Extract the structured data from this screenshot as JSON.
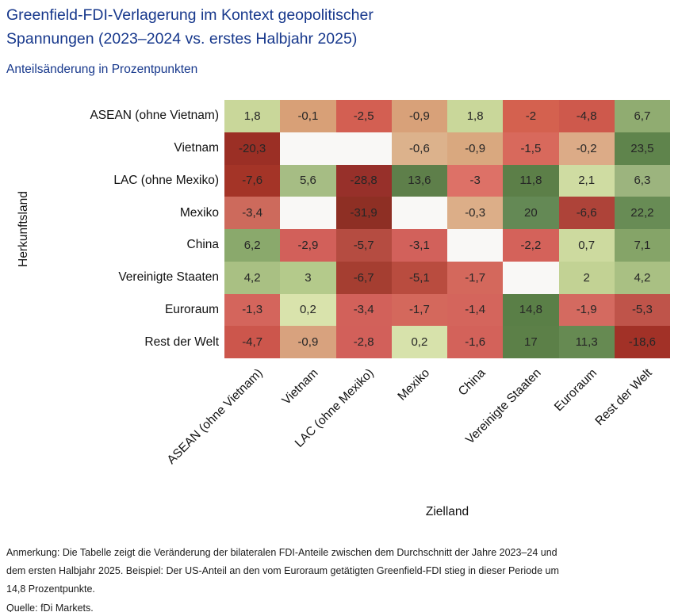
{
  "header": {
    "title_line1": "Greenfield-FDI-Verlagerung im Kontext geopolitischer",
    "title_line2": "Spannungen (2023–2024 vs. erstes Halbjahr 2025)",
    "subtitle": "Anteilsänderung in Prozentpunkten"
  },
  "chart_data": {
    "type": "heatmap",
    "title": "Greenfield-FDI-Verlagerung im Kontext geopolitischer Spannungen (2023–2024 vs. erstes Halbjahr 2025)",
    "subtitle": "Anteilsänderung in Prozentpunkten",
    "xlabel": "Zielland",
    "ylabel": "Herkunftsland",
    "columns": [
      "ASEAN (ohne Vietnam)",
      "Vietnam",
      "LAC (ohne Mexiko)",
      "Mexiko",
      "China",
      "Vereinigte Staaten",
      "Euroraum",
      "Rest der Welt"
    ],
    "rows": [
      "ASEAN (ohne Vietnam)",
      "Vietnam",
      "LAC (ohne Mexiko)",
      "Mexiko",
      "China",
      "Vereinigte Staaten",
      "Euroraum",
      "Rest der Welt"
    ],
    "values": [
      [
        1.8,
        -0.1,
        -2.5,
        -0.9,
        1.8,
        -2,
        -4.8,
        6.7
      ],
      [
        -20.3,
        null,
        null,
        -0.6,
        -0.9,
        -1.5,
        -0.2,
        23.5
      ],
      [
        -7.6,
        5.6,
        -28.8,
        13.6,
        -3,
        11.8,
        2.1,
        6.3
      ],
      [
        -3.4,
        null,
        -31.9,
        null,
        -0.3,
        20,
        -6.6,
        22.2
      ],
      [
        6.2,
        -2.9,
        -5.7,
        -3.1,
        null,
        -2.2,
        0.7,
        7.1
      ],
      [
        4.2,
        3,
        -6.7,
        -5.1,
        -1.7,
        null,
        2,
        4.2
      ],
      [
        -1.3,
        0.2,
        -3.4,
        -1.7,
        -1.4,
        14.8,
        -1.9,
        -5.3
      ],
      [
        -4.7,
        -0.9,
        -2.8,
        0.2,
        -1.6,
        17,
        11.3,
        -18.6
      ]
    ],
    "labels": [
      [
        "1,8",
        "-0,1",
        "-2,5",
        "-0,9",
        "1,8",
        "-2",
        "-4,8",
        "6,7"
      ],
      [
        "-20,3",
        "",
        "",
        "-0,6",
        "-0,9",
        "-1,5",
        "-0,2",
        "23,5"
      ],
      [
        "-7,6",
        "5,6",
        "-28,8",
        "13,6",
        "-3",
        "11,8",
        "2,1",
        "6,3"
      ],
      [
        "-3,4",
        "",
        "-31,9",
        "",
        "-0,3",
        "20",
        "-6,6",
        "22,2"
      ],
      [
        "6,2",
        "-2,9",
        "-5,7",
        "-3,1",
        "",
        "-2,2",
        "0,7",
        "7,1"
      ],
      [
        "4,2",
        "3",
        "-6,7",
        "-5,1",
        "-1,7",
        "",
        "2",
        "4,2"
      ],
      [
        "-1,3",
        "0,2",
        "-3,4",
        "-1,7",
        "-1,4",
        "14,8",
        "-1,9",
        "-5,3"
      ],
      [
        "-4,7",
        "-0,9",
        "-2,8",
        "0,2",
        "-1,6",
        "17",
        "11,3",
        "-18,6"
      ]
    ],
    "cell_colors": [
      [
        "#c9d79a",
        "#d8a077",
        "#d35f52",
        "#d8a179",
        "#c9d79a",
        "#d4614f",
        "#ce594c",
        "#90ac71"
      ],
      [
        "#9b2f25",
        null,
        null,
        "#dcb28c",
        "#d9a87f",
        "#d8695c",
        "#dcab87",
        "#5f844c"
      ],
      [
        "#a43427",
        "#a6bd84",
        "#97302a",
        "#5e7f4a",
        "#dd7167",
        "#5c7f48",
        "#cfdca2",
        "#9cb47e"
      ],
      [
        "#cd6a5c",
        null,
        "#8e2f24",
        null,
        "#dcae88",
        "#648955",
        "#ae4339",
        "#688c55"
      ],
      [
        "#8aa96c",
        "#d2605a",
        "#b54c41",
        "#d2615b",
        null,
        "#d4625a",
        "#cdda9f",
        "#85a468"
      ],
      [
        "#a9c083",
        "#b4ca8b",
        "#a53e31",
        "#b94c3f",
        "#d4685c",
        null,
        "#c2d294",
        "#a9c083"
      ],
      [
        "#d4655c",
        "#d9e3ac",
        "#d2615a",
        "#d4685c",
        "#d4655c",
        "#5a7f47",
        "#d46a60",
        "#bf544a"
      ],
      [
        "#cc564c",
        "#d8a27e",
        "#d2605a",
        "#d7e2ab",
        "#d3625a",
        "#5c8048",
        "#668a52",
        "#a23127"
      ]
    ],
    "empty_color": "#f9f8f6",
    "legend_position": "none",
    "grid": false
  },
  "footer": {
    "note_lines": [
      "Anmerkung: Die Tabelle zeigt die Veränderung der bilateralen FDI-Anteile zwischen dem Durchschnitt der Jahre 2023–24 und",
      "dem ersten Halbjahr 2025. Beispiel: Der US-Anteil an den vom Euroraum getätigten Greenfield-FDI stieg in dieser Periode um",
      "14,8 Prozentpunkte."
    ],
    "source": "Quelle: fDi Markets."
  },
  "colors": {
    "title_text": "#17388c",
    "label_text": "#111111",
    "cell_text": "#262626",
    "background": "#ffffff"
  }
}
